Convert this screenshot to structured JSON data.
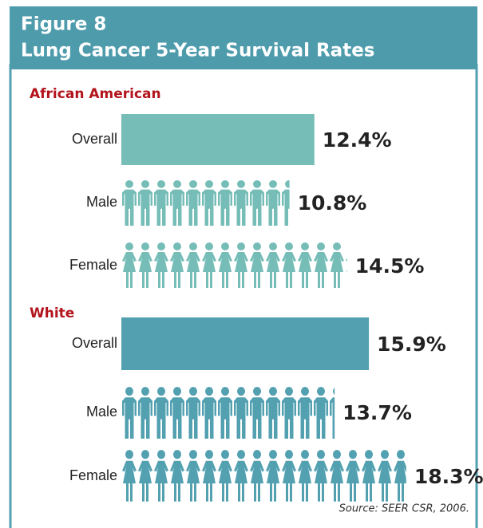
{
  "chart_data": {
    "type": "bar",
    "title": "Figure 8",
    "subtitle": "Lung Cancer 5-Year Survival Rates",
    "groups": [
      {
        "name": "African American",
        "color": "#76bdb8",
        "categories": [
          "Overall",
          "Male",
          "Female"
        ],
        "values": [
          12.4,
          10.8,
          14.5
        ],
        "value_labels": [
          "12.4%",
          "10.8%",
          "14.5%"
        ]
      },
      {
        "name": "White",
        "color": "#52a0b0",
        "categories": [
          "Overall",
          "Male",
          "Female"
        ],
        "values": [
          15.9,
          13.7,
          18.3
        ],
        "value_labels": [
          "15.9%",
          "13.7%",
          "18.3%"
        ]
      }
    ],
    "source": "Source: SEER CSR, 2006."
  }
}
